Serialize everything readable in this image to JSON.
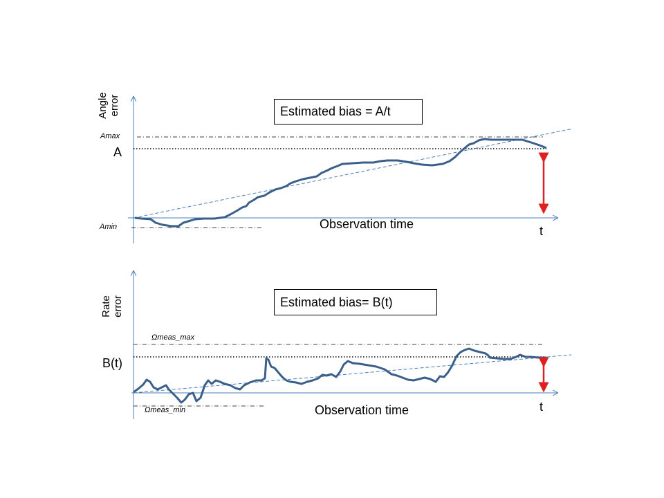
{
  "top_panel": {
    "y_axis_label_line1": "Angle",
    "y_axis_label_line2": "error",
    "box_text": "Estimated bias = A/t",
    "amax_label": "Amax",
    "a_label": "A",
    "amin_label": "Amin",
    "x_axis_label": "Observation time",
    "t_label": "t"
  },
  "bottom_panel": {
    "y_axis_label_line1": "Rate",
    "y_axis_label_line2": "error",
    "box_text": "Estimated bias= B(t)",
    "max_label": "Ωmeas_max",
    "b_label": "B(t)",
    "min_label": "Ωmeas_min",
    "x_axis_label": "Observation time",
    "t_label": "t"
  },
  "colors": {
    "axis": "#4a7ebb",
    "signal": "#3a5f8a",
    "trend": "#4a7ebb",
    "arrow": "#e02020",
    "reference_lines": "#000000"
  }
}
